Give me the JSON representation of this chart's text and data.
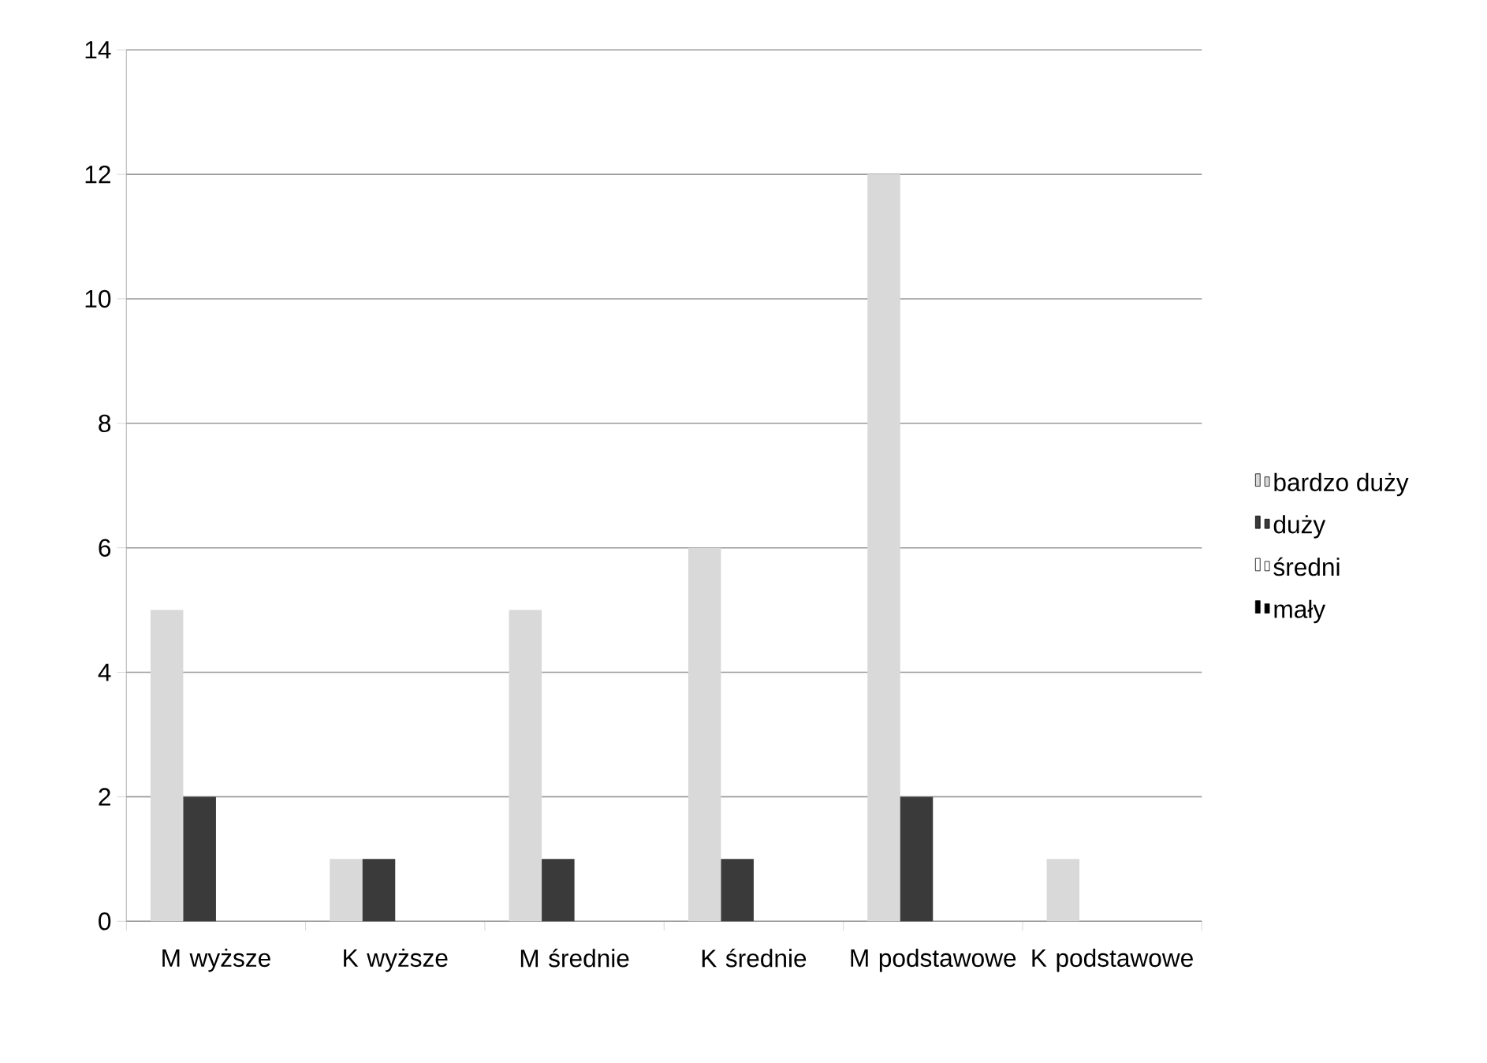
{
  "chart_data": {
    "type": "bar",
    "categories": [
      "M wyższe",
      "K wyższe",
      "M średnie",
      "K średnie",
      "M podstawowe",
      "K podstawowe"
    ],
    "series": [
      {
        "name": "bardzo duży",
        "color": "#d9d9d9",
        "values": [
          5,
          1,
          5,
          6,
          12,
          1
        ]
      },
      {
        "name": "duży",
        "color": "#3a3a3a",
        "values": [
          2,
          1,
          1,
          1,
          2,
          0
        ]
      },
      {
        "name": "średni",
        "color": "#ffffff",
        "values": [
          0,
          0,
          0,
          0,
          0,
          0
        ]
      },
      {
        "name": "mały",
        "color": "#000000",
        "values": [
          0,
          0,
          0,
          0,
          0,
          0
        ]
      }
    ],
    "ylim": [
      0,
      14
    ],
    "yticks": [
      0,
      2,
      4,
      6,
      8,
      10,
      12,
      14
    ],
    "grid": "y",
    "legend": "right"
  }
}
